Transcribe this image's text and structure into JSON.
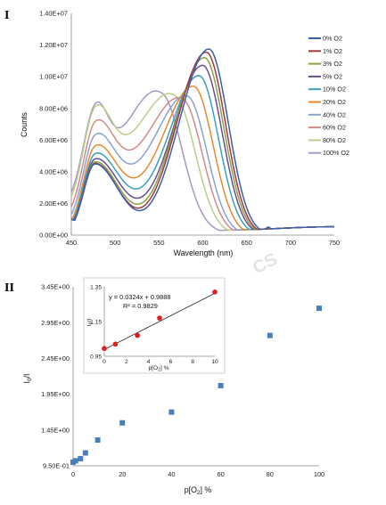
{
  "watermark": "CS",
  "chart_data": [
    {
      "type": "line",
      "panel_label": "I",
      "xlabel": "Wavelength (nm)",
      "ylabel": "Counts",
      "xlim": [
        450,
        750
      ],
      "ylim": [
        0,
        14000000
      ],
      "x_ticks": [
        450,
        500,
        550,
        600,
        650,
        700,
        750
      ],
      "y_ticks": [
        0,
        2000000,
        4000000,
        6000000,
        8000000,
        10000000,
        12000000,
        14000000
      ],
      "y_tick_labels": [
        "0.00E+00",
        "2.00E+06",
        "4.00E+06",
        "6.00E+06",
        "8.00E+06",
        "1.00E+07",
        "1.20E+07",
        "1.40E+07"
      ],
      "grid": false,
      "legend_position": "right",
      "series": [
        {
          "name": "0% O2",
          "color": "#3a5fa8",
          "peak1": 4500000,
          "trough": 400000,
          "peak2_x": 607,
          "peak2_y": 11750000
        },
        {
          "name": "1% O2",
          "color": "#a03a3e",
          "peak1": 4500000,
          "trough": 550000,
          "peak2_x": 604,
          "peak2_y": 11550000
        },
        {
          "name": "3% O2",
          "color": "#8aa446",
          "peak1": 4500000,
          "trough": 800000,
          "peak2_x": 602,
          "peak2_y": 11200000
        },
        {
          "name": "5% O2",
          "color": "#6a4d93",
          "peak1": 4500000,
          "trough": 1200000,
          "peak2_x": 600,
          "peak2_y": 10700000
        },
        {
          "name": "10% O2",
          "color": "#3aa0bd",
          "peak1": 4500000,
          "trough": 1800000,
          "peak2_x": 596,
          "peak2_y": 10000000
        },
        {
          "name": "20% O2",
          "color": "#e8892e",
          "peak1": 4550000,
          "trough": 2500000,
          "peak2_x": 590,
          "peak2_y": 9200000
        },
        {
          "name": "40% O2",
          "color": "#8aa2cf",
          "peak1": 4600000,
          "trough": 3400000,
          "peak2_x": 583,
          "peak2_y": 8300000
        },
        {
          "name": "60% O2",
          "color": "#d08a8a",
          "peak1": 4700000,
          "trough": 4300000,
          "peak2_x": 578,
          "peak2_y": 7700000
        },
        {
          "name": "80% O2",
          "color": "#b9cf8a",
          "peak1": 4850000,
          "trough": 5300000,
          "peak2_x": 570,
          "peak2_y": 7200000
        },
        {
          "name": "100% O2",
          "color": "#a898c2",
          "peak1": 4900000,
          "trough": 5900000,
          "peak2_x": 555,
          "peak2_y": 6800000
        }
      ]
    },
    {
      "type": "scatter",
      "panel_label": "II",
      "xlabel": "p[O2] %",
      "ylabel": "I0/I",
      "xlim": [
        0,
        100
      ],
      "ylim": [
        0.95,
        3.45
      ],
      "x_ticks": [
        0,
        20,
        40,
        60,
        80,
        100
      ],
      "y_ticks": [
        0.95,
        1.45,
        1.95,
        2.45,
        2.95,
        3.45
      ],
      "y_tick_labels": [
        "9.50E-01",
        "1.45E+00",
        "1.95E+00",
        "2.45E+00",
        "2.95E+00",
        "3.45E+00"
      ],
      "marker_color": "#4a7ebb",
      "points": [
        {
          "x": 0,
          "y": 1.0
        },
        {
          "x": 1,
          "y": 1.02
        },
        {
          "x": 3,
          "y": 1.05
        },
        {
          "x": 5,
          "y": 1.13
        },
        {
          "x": 10,
          "y": 1.31
        },
        {
          "x": 20,
          "y": 1.55
        },
        {
          "x": 40,
          "y": 1.7
        },
        {
          "x": 60,
          "y": 2.07
        },
        {
          "x": 80,
          "y": 2.77
        },
        {
          "x": 100,
          "y": 3.15
        }
      ]
    },
    {
      "type": "scatter",
      "role": "inset",
      "xlabel": "p[O2] %",
      "ylabel": "I0/I",
      "xlim": [
        0,
        10
      ],
      "ylim": [
        0.95,
        1.35
      ],
      "x_ticks": [
        0,
        2,
        4,
        6,
        8,
        10
      ],
      "y_ticks": [
        0.95,
        1.15,
        1.35
      ],
      "y_tick_labels": [
        "0.95",
        "1.15",
        "1.35"
      ],
      "marker_color": "#e31b1b",
      "points": [
        {
          "x": 0,
          "y": 0.995
        },
        {
          "x": 1,
          "y": 1.02
        },
        {
          "x": 3,
          "y": 1.07
        },
        {
          "x": 5,
          "y": 1.17
        },
        {
          "x": 10,
          "y": 1.32
        }
      ],
      "trendline": {
        "slope": 0.0324,
        "intercept": 0.9888
      },
      "equation": "y = 0.0324x + 0.9888",
      "r_squared": "R² = 0.9829"
    }
  ]
}
